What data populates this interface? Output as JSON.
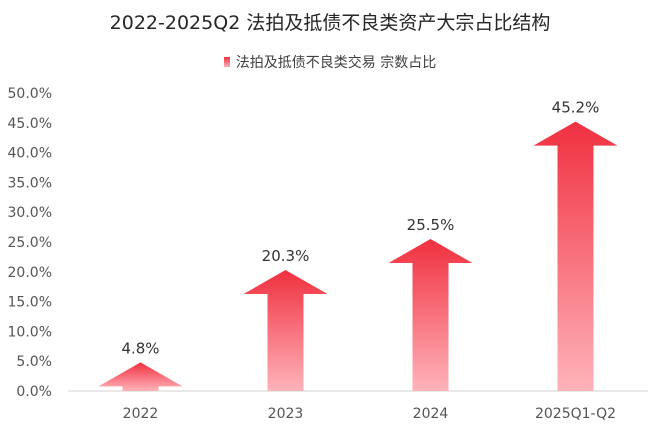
{
  "chart_data": {
    "type": "bar",
    "title": "2022-2025Q2 法拍及抵债不良类资产大宗占比结构",
    "legend": "法拍及抵债不良类交易 宗数占比",
    "categories": [
      "2022",
      "2023",
      "2024",
      "2025Q1-Q2"
    ],
    "values": [
      4.8,
      20.3,
      25.5,
      45.2
    ],
    "data_labels": [
      "4.8%",
      "20.3%",
      "25.5%",
      "45.2%"
    ],
    "y_ticks": [
      "0.0%",
      "5.0%",
      "10.0%",
      "15.0%",
      "20.0%",
      "25.0%",
      "30.0%",
      "35.0%",
      "40.0%",
      "45.0%",
      "50.0%"
    ],
    "ylim": [
      0,
      50
    ],
    "grid": false,
    "legend_position": "top",
    "colors": {
      "top": "#f0303f",
      "bottom": "#ffb3ba"
    },
    "mark_shape": "arrow"
  }
}
